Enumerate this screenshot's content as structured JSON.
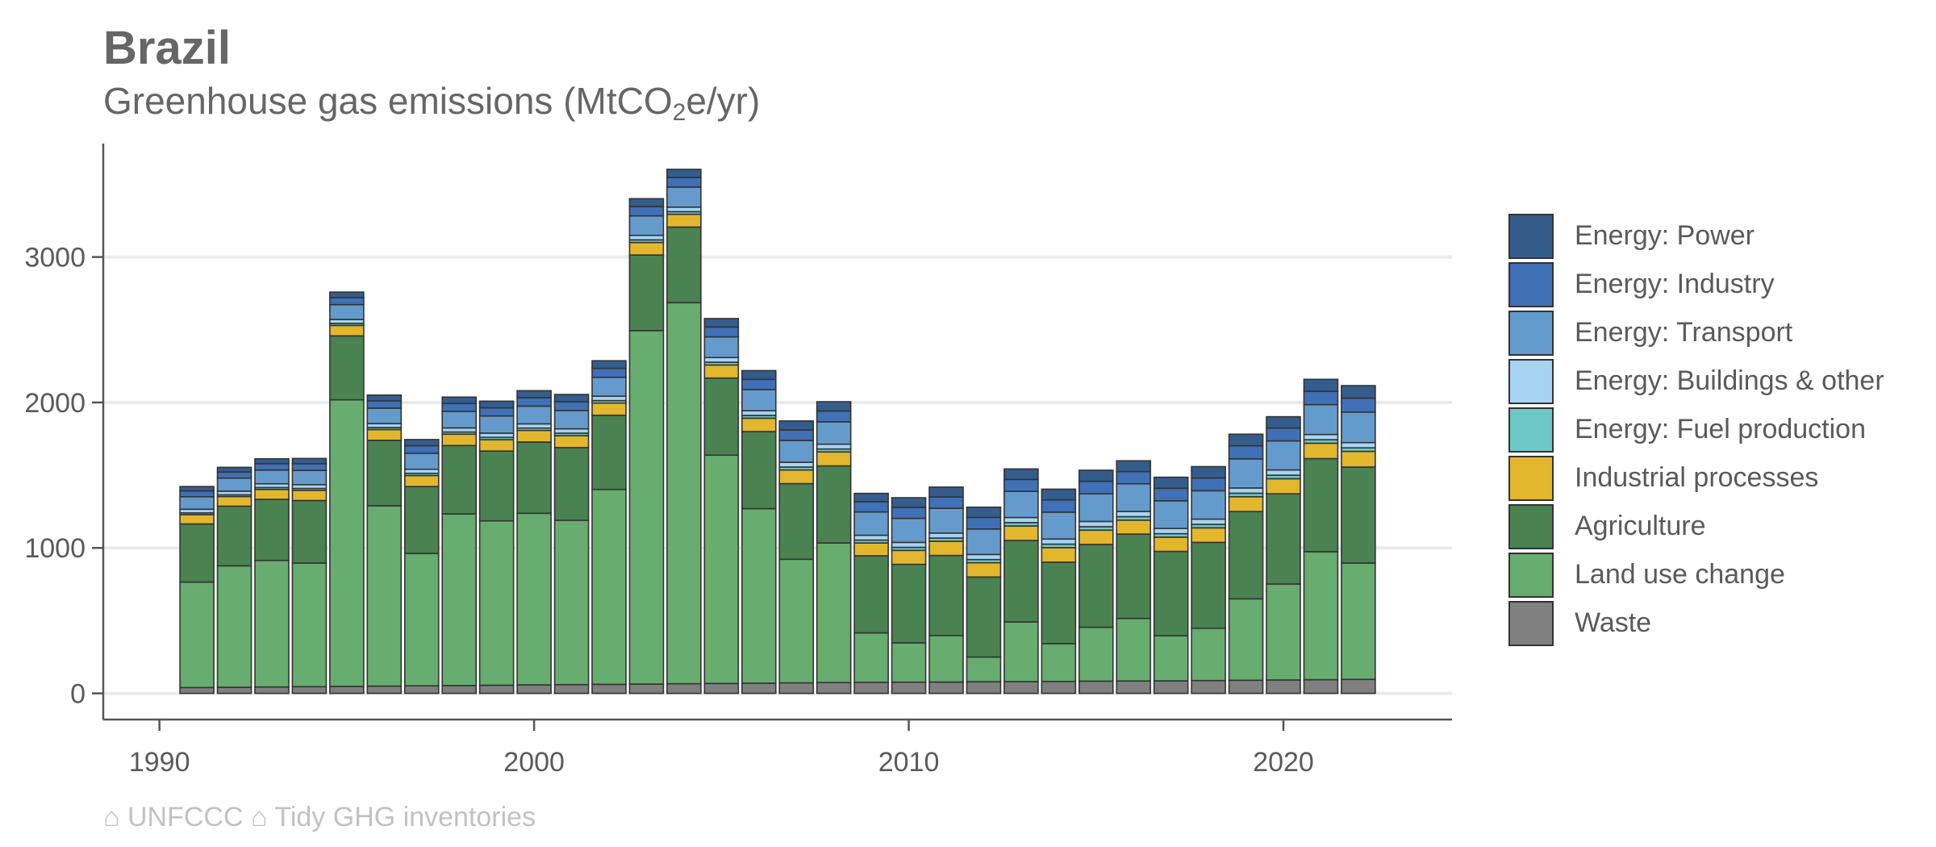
{
  "title": "Brazil",
  "subtitle": {
    "main": "Greenhouse gas emissions (MtCO",
    "sub": "2",
    "tail": "e/yr)"
  },
  "caption": "⌂ UNFCCC ⌂ Tidy GHG inventories",
  "chart_data": {
    "type": "bar",
    "stacked": true,
    "x": [
      1991,
      1992,
      1993,
      1994,
      1995,
      1996,
      1997,
      1998,
      1999,
      2000,
      2001,
      2002,
      2003,
      2004,
      2005,
      2006,
      2007,
      2008,
      2009,
      2010,
      2011,
      2012,
      2013,
      2014,
      2015,
      2016,
      2017,
      2018,
      2019,
      2020,
      2021,
      2022
    ],
    "xlim": [
      1988.5,
      2024.5
    ],
    "xticks": [
      1990,
      2000,
      2010,
      2020
    ],
    "ylim": [
      -180,
      3780
    ],
    "yticks": [
      0,
      1000,
      2000,
      3000
    ],
    "grid": true,
    "legend_position": "right",
    "series": [
      {
        "name": "Waste",
        "color": "#808080",
        "values": [
          40,
          42,
          44,
          46,
          48,
          50,
          52,
          54,
          56,
          58,
          60,
          62,
          64,
          66,
          68,
          70,
          72,
          74,
          76,
          77,
          78,
          80,
          81,
          82,
          84,
          85,
          86,
          88,
          90,
          92,
          94,
          96
        ]
      },
      {
        "name": "Land use change",
        "color": "#66ad6f",
        "values": [
          725,
          835,
          870,
          850,
          1970,
          1240,
          910,
          1180,
          1130,
          1180,
          1130,
          1340,
          2430,
          2620,
          1570,
          1200,
          850,
          960,
          340,
          270,
          320,
          170,
          410,
          260,
          370,
          430,
          310,
          360,
          560,
          660,
          880,
          800
        ]
      },
      {
        "name": "Agriculture",
        "color": "#4a8252",
        "values": [
          400,
          410,
          420,
          430,
          440,
          450,
          460,
          470,
          480,
          490,
          500,
          510,
          520,
          520,
          530,
          530,
          520,
          530,
          530,
          540,
          550,
          550,
          560,
          560,
          570,
          580,
          580,
          590,
          600,
          620,
          640,
          660
        ]
      },
      {
        "name": "Industrial processes",
        "color": "#e2b72e",
        "values": [
          64,
          66,
          68,
          70,
          72,
          74,
          76,
          78,
          78,
          80,
          82,
          84,
          86,
          88,
          90,
          92,
          94,
          96,
          88,
          96,
          98,
          98,
          100,
          100,
          98,
          96,
          98,
          100,
          102,
          104,
          106,
          108
        ]
      },
      {
        "name": "Energy: Fuel production",
        "color": "#6ec8c5",
        "values": [
          12,
          12,
          13,
          13,
          14,
          14,
          15,
          15,
          16,
          16,
          17,
          17,
          18,
          18,
          19,
          19,
          20,
          20,
          20,
          21,
          22,
          22,
          23,
          24,
          24,
          24,
          24,
          24,
          24,
          24,
          24,
          24
        ]
      },
      {
        "name": "Energy: Buildings & other",
        "color": "#a8d4f4",
        "values": [
          25,
          25,
          26,
          26,
          27,
          27,
          28,
          28,
          29,
          29,
          30,
          30,
          31,
          31,
          32,
          32,
          33,
          33,
          33,
          34,
          34,
          35,
          35,
          35,
          36,
          36,
          36,
          36,
          36,
          36,
          36,
          36
        ]
      },
      {
        "name": "Energy: Transport",
        "color": "#659bcc",
        "values": [
          86,
          90,
          94,
          98,
          102,
          106,
          110,
          114,
          118,
          122,
          126,
          130,
          134,
          138,
          142,
          146,
          150,
          154,
          160,
          165,
          170,
          175,
          180,
          185,
          190,
          190,
          190,
          195,
          200,
          200,
          205,
          210
        ]
      },
      {
        "name": "Energy: Industry",
        "color": "#4070b5",
        "values": [
          40,
          42,
          44,
          46,
          48,
          50,
          52,
          54,
          56,
          58,
          60,
          62,
          64,
          66,
          68,
          70,
          72,
          74,
          70,
          76,
          78,
          80,
          82,
          84,
          86,
          84,
          86,
          88,
          90,
          88,
          92,
          96
        ]
      },
      {
        "name": "Energy: Power",
        "color": "#345d8c",
        "values": [
          30,
          32,
          34,
          36,
          38,
          40,
          42,
          44,
          46,
          48,
          50,
          52,
          54,
          56,
          58,
          60,
          62,
          64,
          58,
          66,
          68,
          70,
          72,
          74,
          76,
          74,
          76,
          78,
          80,
          78,
          82,
          86
        ]
      }
    ]
  }
}
